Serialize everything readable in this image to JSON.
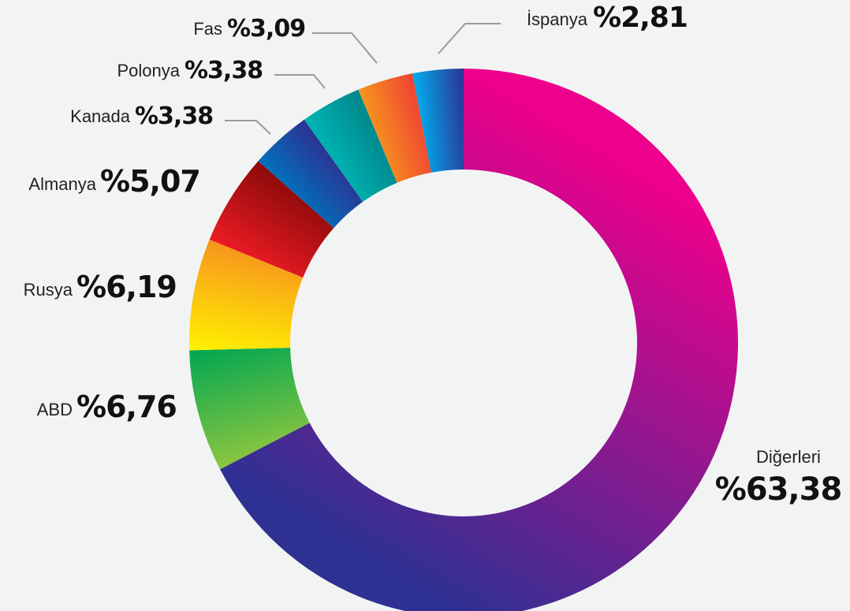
{
  "chart_data": {
    "type": "donut",
    "categories": [
      "Diğerleri",
      "ABD",
      "Rusya",
      "Almanya",
      "Kanada",
      "Polonya",
      "Fas",
      "İspanya"
    ],
    "values": [
      63.38,
      6.76,
      6.19,
      5.07,
      3.38,
      3.38,
      3.09,
      2.81
    ],
    "value_labels": [
      "%63,38",
      "%6,76",
      "%6,19",
      "%5,07",
      "%3,38",
      "%3,38",
      "%3,09",
      "%2,81"
    ],
    "colors": [
      [
        "#ec008c",
        "#2e3192"
      ],
      [
        "#8dc63f",
        "#00a651"
      ],
      [
        "#fff200",
        "#f7941d"
      ],
      [
        "#ed1c24",
        "#8b0a0a"
      ],
      [
        "#0072bc",
        "#2e3192"
      ],
      [
        "#00b5b5",
        "#00868a"
      ],
      [
        "#f7941d",
        "#ef4136"
      ],
      [
        "#00aeef",
        "#2e3192"
      ]
    ]
  }
}
